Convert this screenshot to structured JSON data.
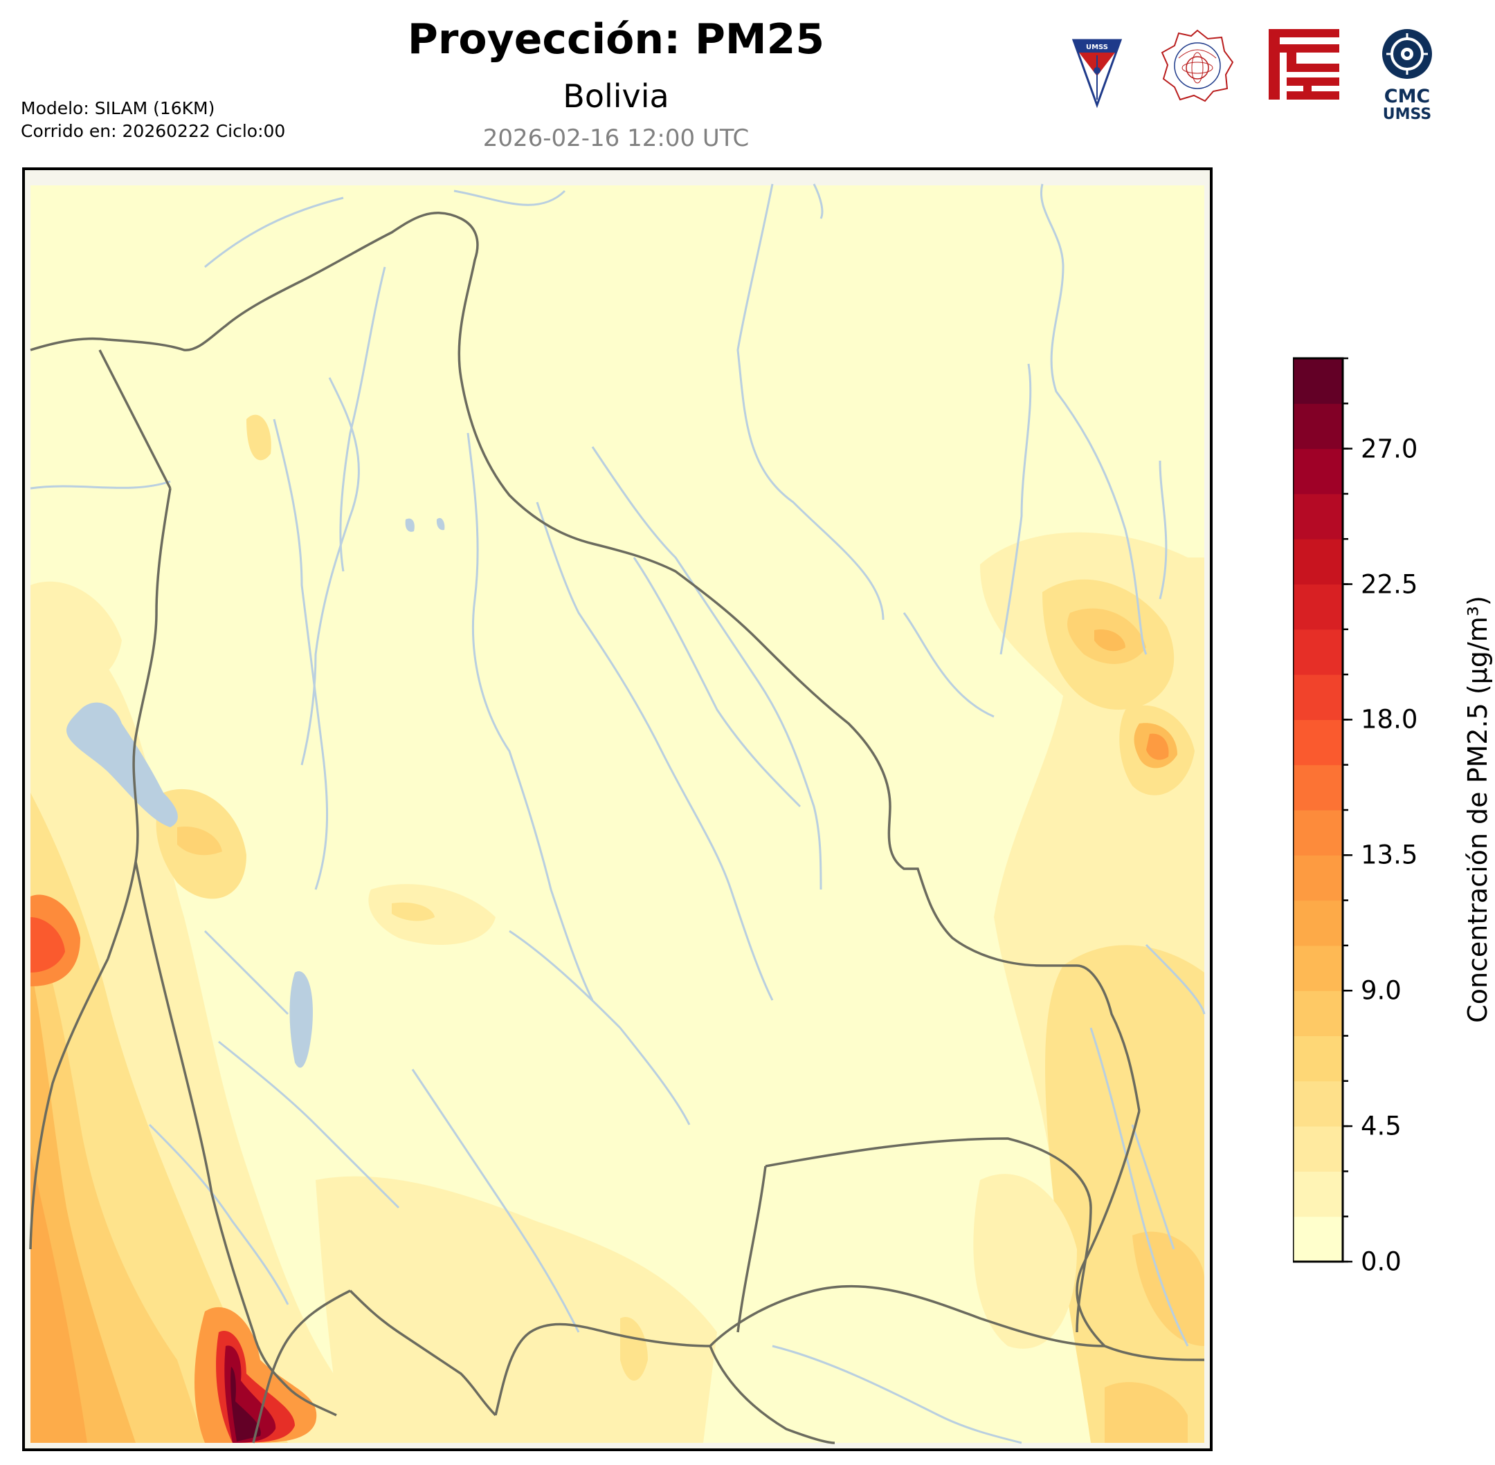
{
  "header": {
    "title": "Proyección: PM25",
    "region": "Bolivia",
    "valid_time": "2026-02-16 12:00 UTC",
    "model_line": "Modelo: SILAM (16KM)",
    "run_line": "Corrido en: 20260222 Ciclo:00"
  },
  "logos": [
    {
      "name": "umss-shield-logo",
      "text": "UMSS"
    },
    {
      "name": "departamento-fisica-seal-logo",
      "text": "DEPARTAMENTO DE FÍSICA"
    },
    {
      "name": "red-emblem-logo",
      "text": ""
    },
    {
      "name": "cmc-umss-logo",
      "text": "CMC UMSS"
    }
  ],
  "colorbar": {
    "label": "Concentración de PM2.5 (µg/m³)",
    "ticks": [
      "0.0",
      "4.5",
      "9.0",
      "13.5",
      "18.0",
      "22.5",
      "27.0"
    ],
    "tick_values": [
      0,
      4.5,
      9,
      13.5,
      18,
      22.5,
      27
    ],
    "min": 0,
    "max": 30,
    "levels": 20,
    "colors": [
      "#ffffcc",
      "#fff4b5",
      "#ffea9f",
      "#fee08a",
      "#fed776",
      "#fec965",
      "#feb954",
      "#fdaa48",
      "#fd9b41",
      "#fd8b3b",
      "#fc7334",
      "#fa5a2e",
      "#f1432b",
      "#e62f27",
      "#d82023",
      "#c8141f",
      "#b50a25",
      "#9f0127",
      "#820026",
      "#630026"
    ]
  },
  "map": {
    "background_color": "#fefecc",
    "border_color": "#6b6b5e",
    "river_color": "#b9cfe0",
    "lake_color": "#b9cfe0",
    "features": [
      "country-borders",
      "rivers",
      "lakes",
      "pm25-contours"
    ]
  }
}
